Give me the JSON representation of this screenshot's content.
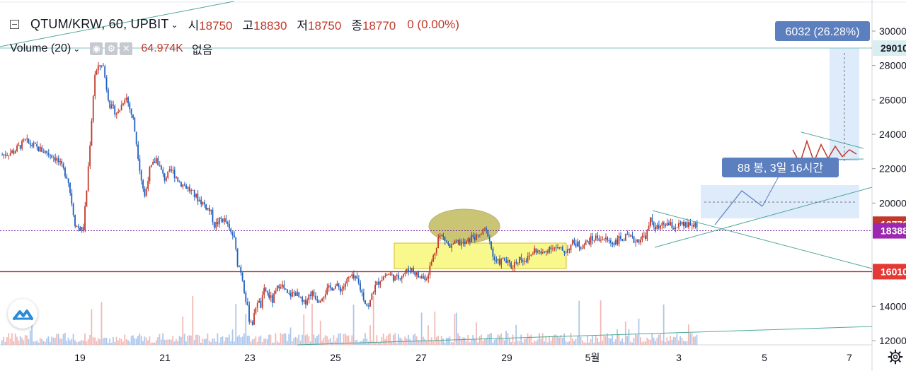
{
  "header": {
    "symbol": "QTUM/KRW, 60, UPBIT",
    "open_label": "시",
    "open_value": "18750",
    "high_label": "고",
    "high_value": "18830",
    "low_label": "저",
    "low_value": "18750",
    "close_label": "종",
    "close_value": "18770",
    "change": "0 (0.00%)"
  },
  "volume_legend": {
    "label": "Volume (20)",
    "value": "64.974K",
    "ma_value": "없음"
  },
  "icons": [
    "minimize-icon",
    "chevron-down-icon",
    "eye-icon",
    "gear-icon",
    "close-icon",
    "tradingview-logo",
    "settings-gear-icon"
  ],
  "colors": {
    "up": "#c0392b",
    "down": "#1f5fbf",
    "up_volume": "#f2b8b3",
    "down_volume": "#a9c6ec",
    "price_line": "#7b1fa2",
    "support_line": "#b71c1c",
    "trendline": "#4fa89a",
    "box_yellow": "#f7f77a",
    "measure_blue": "#5b7fbf"
  },
  "chart_data": {
    "type": "candlestick",
    "y_axis": {
      "ticks": [
        "30000",
        "28000",
        "26000",
        "24000",
        "22000",
        "20000",
        "14000",
        "12000"
      ],
      "ylim": [
        11800,
        30800
      ]
    },
    "x_axis": {
      "ticks": [
        "19",
        "21",
        "23",
        "25",
        "27",
        "29",
        "5월",
        "3",
        "5",
        "7"
      ]
    },
    "price_labels": [
      {
        "value": "29010",
        "price": 29010,
        "color": "#26a69a",
        "text_color": "#131722",
        "bg": "#d9eef0"
      },
      {
        "value": "18770",
        "price": 18770,
        "color": "#c0392b",
        "text_color": "#ffffff",
        "bg": "#c0392b"
      },
      {
        "value": "18388",
        "price": 18388,
        "color": "#7b1fa2",
        "text_color": "#ffffff",
        "bg": "#9c27b0"
      },
      {
        "value": "16010",
        "price": 16010,
        "color": "#e00000",
        "text_color": "#ffffff",
        "bg": "#e53935"
      }
    ],
    "price_path": [
      [
        0,
        22800
      ],
      [
        3,
        23000
      ],
      [
        6,
        23600
      ],
      [
        9,
        23200
      ],
      [
        12,
        22900
      ],
      [
        14,
        22600
      ],
      [
        17,
        21500
      ],
      [
        19,
        18700
      ],
      [
        21,
        18400
      ],
      [
        22,
        21000
      ],
      [
        24,
        27500
      ],
      [
        26,
        28200
      ],
      [
        27,
        26800
      ],
      [
        28,
        25600
      ],
      [
        30,
        25200
      ],
      [
        32,
        26300
      ],
      [
        34,
        24800
      ],
      [
        36,
        21500
      ],
      [
        37,
        20300
      ],
      [
        38,
        21800
      ],
      [
        40,
        22600
      ],
      [
        42,
        21400
      ],
      [
        44,
        21900
      ],
      [
        46,
        21200
      ],
      [
        48,
        20900
      ],
      [
        50,
        20400
      ],
      [
        52,
        20000
      ],
      [
        54,
        19500
      ],
      [
        55,
        18700
      ],
      [
        57,
        19100
      ],
      [
        58,
        18900
      ],
      [
        59,
        18300
      ],
      [
        60,
        18100
      ],
      [
        61,
        16500
      ],
      [
        62,
        16000
      ],
      [
        63,
        14600
      ],
      [
        64,
        13300
      ],
      [
        65,
        13000
      ],
      [
        66,
        14400
      ],
      [
        67,
        14000
      ],
      [
        68,
        15000
      ],
      [
        70,
        14300
      ],
      [
        72,
        15400
      ],
      [
        74,
        14600
      ],
      [
        76,
        14800
      ],
      [
        78,
        14100
      ],
      [
        80,
        14800
      ],
      [
        82,
        14400
      ],
      [
        84,
        14900
      ],
      [
        86,
        15200
      ],
      [
        88,
        15000
      ],
      [
        90,
        15700
      ],
      [
        92,
        15500
      ],
      [
        94,
        14300
      ],
      [
        95,
        13900
      ],
      [
        96,
        14900
      ],
      [
        98,
        15600
      ],
      [
        100,
        15900
      ],
      [
        102,
        15600
      ],
      [
        104,
        15900
      ],
      [
        106,
        16200
      ],
      [
        108,
        15700
      ],
      [
        110,
        15700
      ],
      [
        112,
        17100
      ],
      [
        113,
        18000
      ],
      [
        114,
        18100
      ],
      [
        116,
        17400
      ],
      [
        118,
        17700
      ],
      [
        120,
        17600
      ],
      [
        122,
        18100
      ],
      [
        123,
        17900
      ],
      [
        124,
        18200
      ],
      [
        125,
        18400
      ],
      [
        126,
        18200
      ],
      [
        127,
        17000
      ],
      [
        128,
        16500
      ],
      [
        130,
        16700
      ],
      [
        132,
        16300
      ],
      [
        134,
        16800
      ],
      [
        136,
        16700
      ],
      [
        138,
        17300
      ],
      [
        140,
        17000
      ],
      [
        142,
        17500
      ],
      [
        144,
        17300
      ],
      [
        146,
        17200
      ],
      [
        148,
        17700
      ],
      [
        150,
        17500
      ],
      [
        152,
        17800
      ],
      [
        154,
        18000
      ],
      [
        156,
        17900
      ],
      [
        158,
        17700
      ],
      [
        160,
        17900
      ],
      [
        162,
        18000
      ],
      [
        164,
        17800
      ],
      [
        166,
        18000
      ],
      [
        167,
        18200
      ],
      [
        168,
        19000
      ],
      [
        169,
        18700
      ],
      [
        170,
        18500
      ],
      [
        172,
        18800
      ],
      [
        174,
        18600
      ],
      [
        176,
        18700
      ],
      [
        178,
        18700
      ],
      [
        180,
        18770
      ]
    ],
    "projection": [
      [
        0,
        23100
      ],
      [
        1,
        22300
      ],
      [
        2,
        23600
      ],
      [
        3,
        22400
      ],
      [
        4,
        23400
      ],
      [
        5,
        22600
      ],
      [
        6,
        23300
      ],
      [
        7,
        22700
      ],
      [
        8,
        23100
      ],
      [
        9,
        22850
      ]
    ],
    "annotations": [
      {
        "text": "6032 (26.28%)",
        "kind": "price-range"
      },
      {
        "text": "88 봉, 3일 16시간",
        "kind": "date-range"
      }
    ]
  }
}
